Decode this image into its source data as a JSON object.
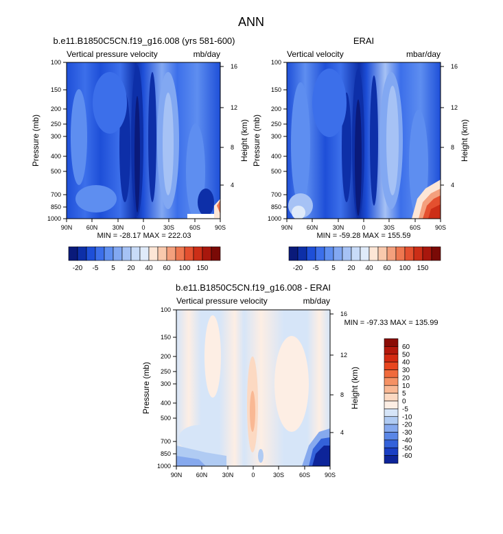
{
  "figure_title": "ANN",
  "panels": [
    {
      "title": "b.e11.B1850C5CN.f19_g16.008 (yrs 581-600)",
      "left_label": "Vertical pressure velocity",
      "right_label": "mb/day",
      "stats": "MIN = -28.17  MAX = 222.03"
    },
    {
      "title": "ERAI",
      "left_label": "Vertical velocity",
      "right_label": "mbar/day",
      "stats": "MIN = -59.28  MAX = 155.59"
    },
    {
      "title": "b.e11.B1850C5CN.f19_g16.008 - ERAI",
      "left_label": "Vertical pressure velocity",
      "right_label": "mb/day",
      "stats": "MIN = -97.33  MAX = 135.99"
    }
  ],
  "axes": {
    "ylabel": "Pressure (mb)",
    "ylabel_right": "Height (km)",
    "pressure_ticks": [
      "100",
      "150",
      "200",
      "250",
      "300",
      "400",
      "500",
      "700",
      "850",
      "1000"
    ],
    "height_ticks": [
      "16",
      "12",
      "8",
      "4"
    ],
    "lat_ticks": [
      "90N",
      "60N",
      "30N",
      "0",
      "30S",
      "60S",
      "90S"
    ]
  },
  "colorbar_main": {
    "labels": [
      "-20",
      "-5",
      "5",
      "20",
      "40",
      "60",
      "100",
      "150"
    ],
    "colors": [
      "#0a1a7a",
      "#0d2fa8",
      "#1e4fd8",
      "#3c6fea",
      "#5e8ef0",
      "#82a8f2",
      "#a6c2f5",
      "#c8dbf8",
      "#e0ebfa",
      "#fde6d6",
      "#f9c9ad",
      "#f4a07d",
      "#ee7750",
      "#e4502f",
      "#cc2e17",
      "#a8170d",
      "#7a0a06"
    ]
  },
  "colorbar_diff": {
    "labels": [
      "60",
      "50",
      "40",
      "30",
      "20",
      "10",
      "5",
      "0",
      "-5",
      "-10",
      "-20",
      "-30",
      "-40",
      "-50",
      "-60"
    ],
    "colors": [
      "#8a0c06",
      "#b3180c",
      "#d42a12",
      "#e8461f",
      "#f06a3c",
      "#f59164",
      "#f9b894",
      "#fcd9c2",
      "#fdeee4",
      "#d6e5f8",
      "#b0cbf3",
      "#86a9ee",
      "#5a86e6",
      "#3462da",
      "#1a3fc4",
      "#0d2499"
    ]
  },
  "chart_data": [
    {
      "type": "heatmap",
      "title": "b.e11.B1850C5CN.f19_g16.008 (yrs 581-600)",
      "variable": "Vertical pressure velocity",
      "units": "mb/day",
      "xlabel": "",
      "ylabel": "Pressure (mb)",
      "ylabel_right": "Height (km)",
      "x_ticks": [
        "90N",
        "60N",
        "30N",
        "0",
        "30S",
        "60S",
        "90S"
      ],
      "y_ticks": [
        100,
        150,
        200,
        250,
        300,
        400,
        500,
        700,
        850,
        1000
      ],
      "y_scale": "log",
      "y_range": [
        1000,
        100
      ],
      "min": -28.17,
      "max": 222.03,
      "contour_levels": [
        -20,
        -5,
        5,
        20,
        40,
        60,
        100,
        150
      ]
    },
    {
      "type": "heatmap",
      "title": "ERAI",
      "variable": "Vertical velocity",
      "units": "mbar/day",
      "xlabel": "",
      "ylabel": "Pressure (mb)",
      "ylabel_right": "Height (km)",
      "x_ticks": [
        "90N",
        "60N",
        "30N",
        "0",
        "30S",
        "60S",
        "90S"
      ],
      "y_ticks": [
        100,
        150,
        200,
        250,
        300,
        400,
        500,
        700,
        850,
        1000
      ],
      "y_scale": "log",
      "y_range": [
        1000,
        100
      ],
      "min": -59.28,
      "max": 155.59,
      "contour_levels": [
        -20,
        -5,
        5,
        20,
        40,
        60,
        100,
        150
      ]
    },
    {
      "type": "heatmap",
      "title": "b.e11.B1850C5CN.f19_g16.008 - ERAI",
      "variable": "Vertical pressure velocity",
      "units": "mb/day",
      "xlabel": "",
      "ylabel": "Pressure (mb)",
      "ylabel_right": "Height (km)",
      "x_ticks": [
        "90N",
        "60N",
        "30N",
        "0",
        "30S",
        "60S",
        "90S"
      ],
      "y_ticks": [
        100,
        150,
        200,
        250,
        300,
        400,
        500,
        700,
        850,
        1000
      ],
      "y_scale": "log",
      "y_range": [
        1000,
        100
      ],
      "min": -97.33,
      "max": 135.99,
      "contour_levels": [
        -60,
        -50,
        -40,
        -30,
        -20,
        -10,
        -5,
        0,
        5,
        10,
        20,
        30,
        40,
        50,
        60
      ]
    }
  ]
}
